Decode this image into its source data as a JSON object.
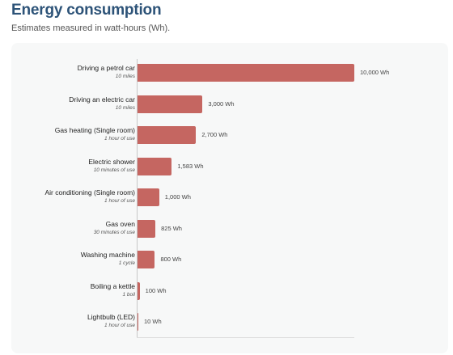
{
  "title": "Energy consumption",
  "subtitle": "Estimates measured in watt-hours (Wh).",
  "colors": {
    "bar": "#c56661",
    "title": "#2d5378"
  },
  "chart_data": {
    "type": "bar",
    "orientation": "horizontal",
    "title": "Energy consumption",
    "subtitle": "Estimates measured in watt-hours (Wh).",
    "xlabel": "",
    "ylabel": "",
    "xlim": [
      0,
      10000
    ],
    "grid": false,
    "categories": [
      "Driving a petrol car",
      "Driving  an electric car",
      "Gas heating (Single room)",
      "Electric shower",
      "Air conditioning (Single room)",
      "Gas oven",
      "Washing machine",
      "Boiling a kettle",
      "Lightbulb (LED)"
    ],
    "sublabels": [
      "10 miles",
      "10 miles",
      "1 hour of use",
      "10 minutes of use",
      "1 hour of use",
      "30 minutes of use",
      "1 cycle",
      "1 boil",
      "1 hour of use"
    ],
    "values": [
      10000,
      3000,
      2700,
      1583,
      1000,
      825,
      800,
      100,
      10
    ],
    "value_labels": [
      "10,000 Wh",
      "3,000 Wh",
      "2,700 Wh",
      "1,583 Wh",
      "1,000 Wh",
      "825 Wh",
      "800 Wh",
      "100 Wh",
      "10 Wh"
    ]
  }
}
